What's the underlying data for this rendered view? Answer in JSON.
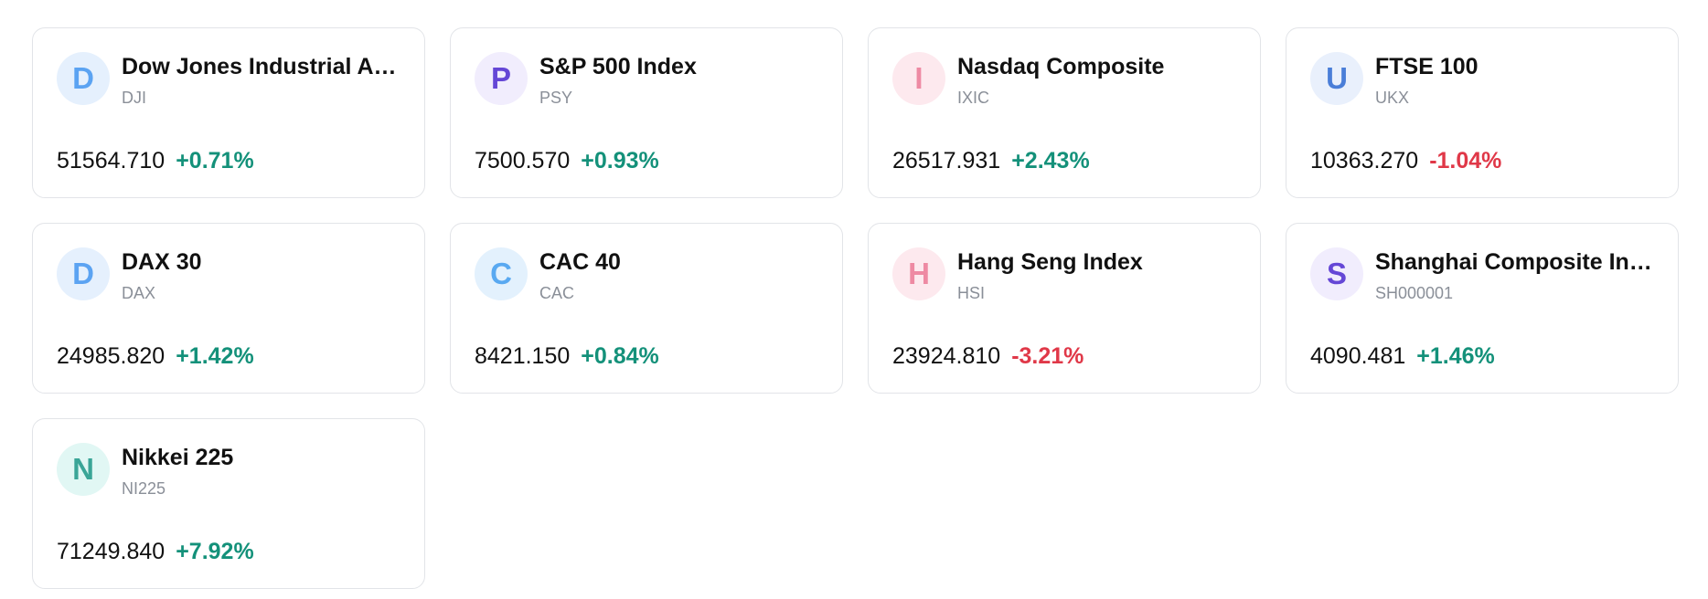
{
  "cards": [
    {
      "avatar": "D",
      "avatar_bg": "#e5f0fd",
      "avatar_fg": "#5ba3f2",
      "name": "Dow Jones Industrial A…",
      "ticker": "DJI",
      "price": "51564.710",
      "change": "+0.71%"
    },
    {
      "avatar": "P",
      "avatar_bg": "#f1edfd",
      "avatar_fg": "#6547d6",
      "name": "S&P 500 Index",
      "ticker": "PSY",
      "price": "7500.570",
      "change": "+0.93%"
    },
    {
      "avatar": "I",
      "avatar_bg": "#fde9ee",
      "avatar_fg": "#ee8aa3",
      "name": "Nasdaq Composite",
      "ticker": "IXIC",
      "price": "26517.931",
      "change": "+2.43%"
    },
    {
      "avatar": "U",
      "avatar_bg": "#e9f0fc",
      "avatar_fg": "#4a7ed8",
      "name": "FTSE 100",
      "ticker": "UKX",
      "price": "10363.270",
      "change": "-1.04%"
    },
    {
      "avatar": "D",
      "avatar_bg": "#e5f0fd",
      "avatar_fg": "#5ba3f2",
      "name": "DAX 30",
      "ticker": "DAX",
      "price": "24985.820",
      "change": "+1.42%"
    },
    {
      "avatar": "C",
      "avatar_bg": "#e3f1fd",
      "avatar_fg": "#59a9f1",
      "name": "CAC 40",
      "ticker": "CAC",
      "price": "8421.150",
      "change": "+0.84%"
    },
    {
      "avatar": "H",
      "avatar_bg": "#fde9ee",
      "avatar_fg": "#ee8aa3",
      "name": "Hang Seng Index",
      "ticker": "HSI",
      "price": "23924.810",
      "change": "-3.21%"
    },
    {
      "avatar": "S",
      "avatar_bg": "#f1edfd",
      "avatar_fg": "#6547d6",
      "name": "Shanghai Composite In…",
      "ticker": "SH000001",
      "price": "4090.481",
      "change": "+1.46%"
    },
    {
      "avatar": "N",
      "avatar_bg": "#e1f7f4",
      "avatar_fg": "#3aa597",
      "name": "Nikkei 225",
      "ticker": "NI225",
      "price": "71249.840",
      "change": "+7.92%"
    }
  ]
}
